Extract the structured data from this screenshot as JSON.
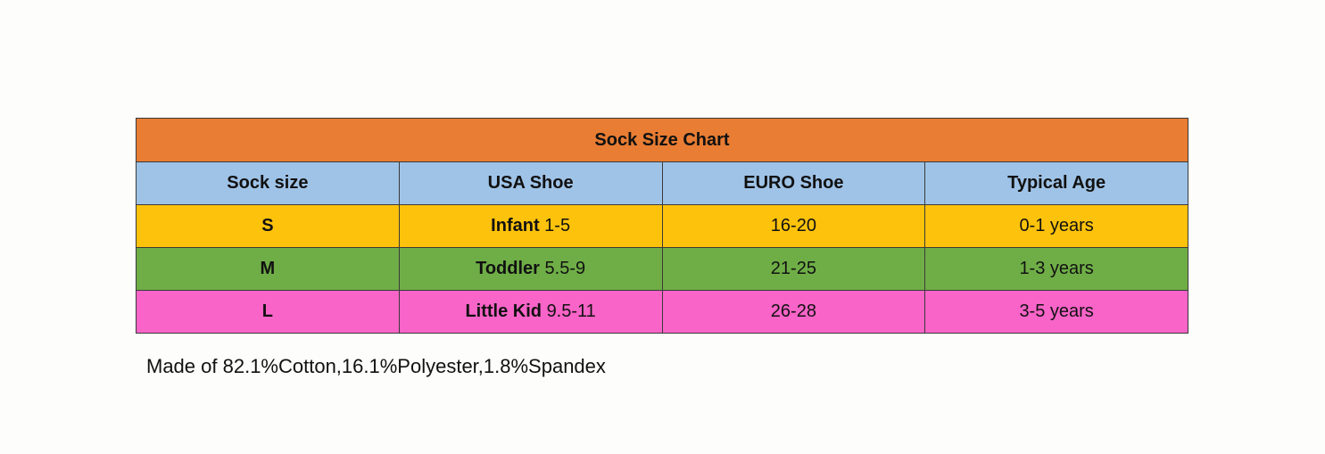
{
  "table": {
    "title": "Sock Size Chart",
    "headers": [
      "Sock size",
      "USA Shoe",
      "EURO Shoe",
      "Typical Age"
    ],
    "rows": [
      {
        "size": "S",
        "usa_prefix": "Infant",
        "usa_range": "1-5",
        "euro": "16-20",
        "age": "0-1 years"
      },
      {
        "size": "M",
        "usa_prefix": "Toddler",
        "usa_range": "5.5-9",
        "euro": "21-25",
        "age": "1-3 years"
      },
      {
        "size": "L",
        "usa_prefix": "Little Kid",
        "usa_range": "9.5-11",
        "euro": "26-28",
        "age": "3-5 years"
      }
    ]
  },
  "footnote": "Made of 82.1%Cotton,16.1%Polyester,1.8%Spandex",
  "colors": {
    "title_bg": "#e87d33",
    "header_bg": "#9fc3e7",
    "row_bgs": [
      "#fdc20b",
      "#6fae47",
      "#f864c8"
    ]
  }
}
